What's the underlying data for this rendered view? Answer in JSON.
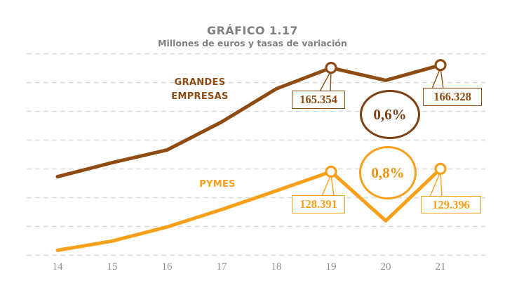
{
  "title": "GRÁFICO 1.17",
  "subtitle": "Millones de euros y tasas de variación",
  "series_labels": {
    "grandes": "GRANDES EMPRESAS",
    "pymes": "PYMES"
  },
  "colors": {
    "grandes": "#8e4b12",
    "pymes": "#f9a01b",
    "grid": "#d9d9d9",
    "title_gray": "#7f7f7f",
    "tick_gray": "#8d8d8d"
  },
  "chart_data": {
    "type": "line",
    "x_ticks": [
      "14",
      "15",
      "16",
      "17",
      "18",
      "19",
      "20",
      "21"
    ],
    "ylim": [
      96500,
      172000
    ],
    "grid": "horizontal-dashed",
    "legend_position": "inline-labels",
    "series": [
      {
        "name": "GRANDES EMPRESAS",
        "color": "#8e4b12",
        "values": [
          126600,
          131600,
          136100,
          146100,
          157900,
          165354,
          160900,
          166328
        ],
        "labeled_points": {
          "19": "165.354",
          "21": "166.328"
        },
        "variation": "0,6%"
      },
      {
        "name": "PYMES",
        "color": "#f9a01b",
        "values": [
          100400,
          103700,
          108700,
          114900,
          121600,
          128391,
          110900,
          129396
        ],
        "labeled_points": {
          "19": "128.391",
          "21": "129.396"
        },
        "variation": "0,8%"
      }
    ]
  },
  "annotations": [
    {
      "series": "GRANDES EMPRESAS",
      "year": "19",
      "label": "165.354"
    },
    {
      "series": "GRANDES EMPRESAS",
      "year": "21",
      "label": "166.328"
    },
    {
      "series": "PYMES",
      "year": "19",
      "label": "128.391"
    },
    {
      "series": "PYMES",
      "year": "21",
      "label": "129.396"
    }
  ],
  "variation_badges": [
    {
      "series": "GRANDES EMPRESAS",
      "label": "0,6%"
    },
    {
      "series": "PYMES",
      "label": "0,8%"
    }
  ]
}
